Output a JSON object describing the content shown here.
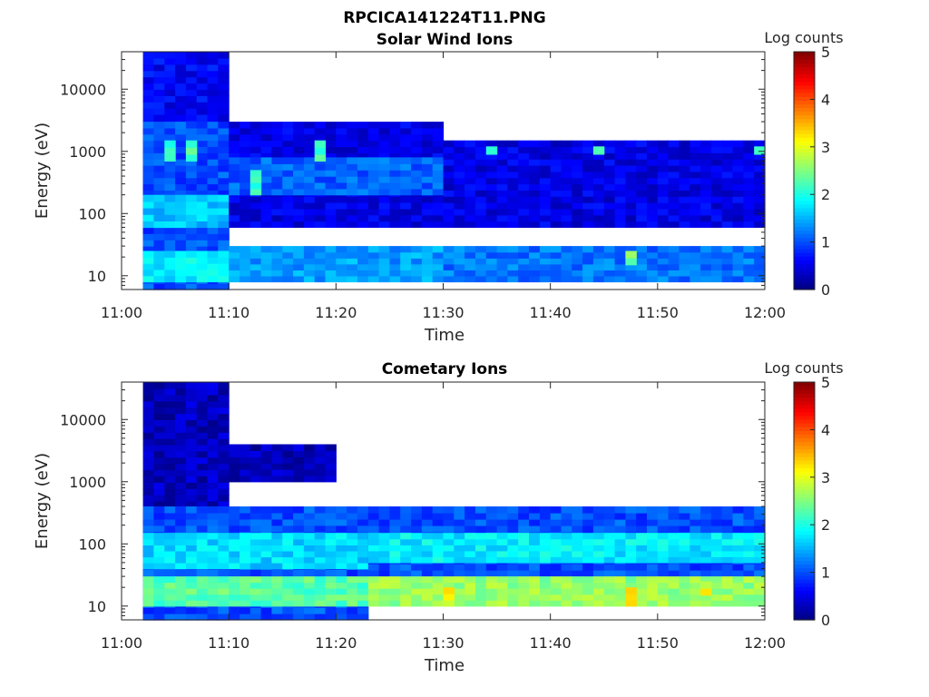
{
  "figure": {
    "title": "RPCICA141224T11.PNG"
  },
  "chart_data": [
    {
      "type": "heatmap",
      "title": "Solar Wind Ions",
      "xlabel": "Time",
      "ylabel": "Energy (eV)",
      "x_ticks": [
        "11:00",
        "11:10",
        "11:20",
        "11:30",
        "11:40",
        "11:50",
        "12:00"
      ],
      "x_range": [
        "11:00",
        "12:00"
      ],
      "y_scale": "log",
      "y_ticks": [
        10,
        100,
        1000,
        10000
      ],
      "y_tick_labels": [
        "10",
        "100",
        "1000",
        "10000"
      ],
      "y_range": [
        6,
        40000
      ],
      "colorbar": {
        "title": "Log counts",
        "range": [
          0,
          5
        ],
        "ticks": [
          "0",
          "1",
          "2",
          "3",
          "4",
          "5"
        ],
        "colormap": "jet"
      },
      "data_start": "11:02",
      "data_end": "12:00",
      "bins": [
        {
          "t": [
            "11:02",
            "11:10"
          ],
          "E": [
            6,
            40000
          ],
          "logc": 0.6
        },
        {
          "t": [
            "11:02",
            "11:10"
          ],
          "E": [
            6,
            3000
          ],
          "logc": 1.0
        },
        {
          "t": [
            "11:02",
            "11:10"
          ],
          "E": [
            60,
            200
          ],
          "logc": 1.6
        },
        {
          "t": [
            "11:02",
            "11:10"
          ],
          "E": [
            8,
            25
          ],
          "logc": 1.8
        },
        {
          "t": [
            "11:04",
            "11:05"
          ],
          "E": [
            700,
            1500
          ],
          "logc": 2.1
        },
        {
          "t": [
            "11:06",
            "11:07"
          ],
          "E": [
            700,
            1500
          ],
          "logc": 2.3
        },
        {
          "t": [
            "11:10",
            "11:30"
          ],
          "E": [
            60,
            3000
          ],
          "logc": 0.5
        },
        {
          "t": [
            "11:10",
            "11:30"
          ],
          "E": [
            200,
            800
          ],
          "logc": 1.1
        },
        {
          "t": [
            "11:10",
            "11:30"
          ],
          "E": [
            8,
            30
          ],
          "logc": 1.4
        },
        {
          "t": [
            "11:12",
            "11:13"
          ],
          "E": [
            200,
            500
          ],
          "logc": 2.2
        },
        {
          "t": [
            "11:18",
            "11:19"
          ],
          "E": [
            700,
            1500
          ],
          "logc": 2.2
        },
        {
          "t": [
            "11:30",
            "12:00"
          ],
          "E": [
            60,
            1500
          ],
          "logc": 0.5
        },
        {
          "t": [
            "11:30",
            "12:00"
          ],
          "E": [
            8,
            30
          ],
          "logc": 1.2
        },
        {
          "t": [
            "11:34",
            "11:35"
          ],
          "E": [
            900,
            1200
          ],
          "logc": 2.3
        },
        {
          "t": [
            "11:44",
            "11:45"
          ],
          "E": [
            900,
            1200
          ],
          "logc": 2.3
        },
        {
          "t": [
            "11:47",
            "11:48"
          ],
          "E": [
            15,
            25
          ],
          "logc": 2.5
        },
        {
          "t": [
            "11:59",
            "12:00"
          ],
          "E": [
            900,
            1200
          ],
          "logc": 2.2
        }
      ]
    },
    {
      "type": "heatmap",
      "title": "Cometary Ions",
      "xlabel": "Time",
      "ylabel": "Energy (eV)",
      "x_ticks": [
        "11:00",
        "11:10",
        "11:20",
        "11:30",
        "11:40",
        "11:50",
        "12:00"
      ],
      "x_range": [
        "11:00",
        "12:00"
      ],
      "y_scale": "log",
      "y_ticks": [
        10,
        100,
        1000,
        10000
      ],
      "y_tick_labels": [
        "10",
        "100",
        "1000",
        "10000"
      ],
      "y_range": [
        6,
        40000
      ],
      "colorbar": {
        "title": "Log counts",
        "range": [
          0,
          5
        ],
        "ticks": [
          "0",
          "1",
          "2",
          "3",
          "4",
          "5"
        ],
        "colormap": "jet"
      },
      "data_start": "11:02",
      "data_end": "12:00",
      "bins": [
        {
          "t": [
            "11:02",
            "11:10"
          ],
          "E": [
            6,
            40000
          ],
          "logc": 0.3
        },
        {
          "t": [
            "11:02",
            "11:23"
          ],
          "E": [
            6,
            400
          ],
          "logc": 1.0
        },
        {
          "t": [
            "11:02",
            "11:23"
          ],
          "E": [
            40,
            150
          ],
          "logc": 1.7
        },
        {
          "t": [
            "11:02",
            "11:23"
          ],
          "E": [
            10,
            30
          ],
          "logc": 2.3
        },
        {
          "t": [
            "11:10",
            "11:20"
          ],
          "E": [
            1000,
            4000
          ],
          "logc": 0.3
        },
        {
          "t": [
            "11:23",
            "12:00"
          ],
          "E": [
            30,
            400
          ],
          "logc": 1.0
        },
        {
          "t": [
            "11:23",
            "12:00"
          ],
          "E": [
            50,
            150
          ],
          "logc": 1.8
        },
        {
          "t": [
            "11:23",
            "12:00"
          ],
          "E": [
            10,
            30
          ],
          "logc": 2.6
        },
        {
          "t": [
            "11:30",
            "11:31"
          ],
          "E": [
            10,
            20
          ],
          "logc": 3.1
        },
        {
          "t": [
            "11:47",
            "11:48"
          ],
          "E": [
            10,
            20
          ],
          "logc": 3.2
        },
        {
          "t": [
            "11:54",
            "11:55"
          ],
          "E": [
            15,
            25
          ],
          "logc": 3.0
        }
      ]
    }
  ]
}
